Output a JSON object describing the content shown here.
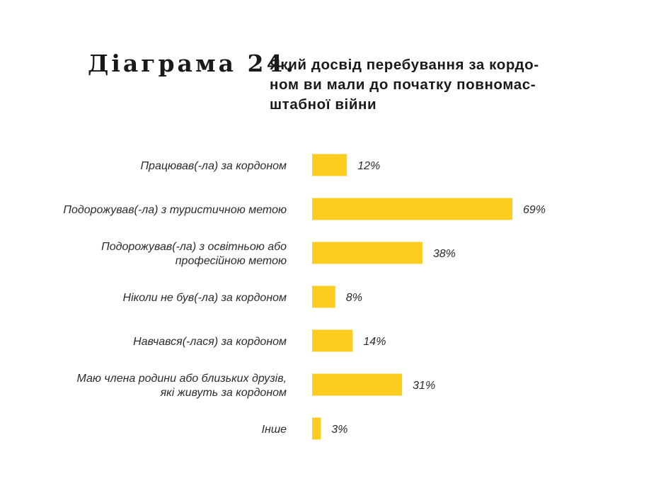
{
  "heading": {
    "number": "Діаграма 24.",
    "title_lines": [
      "Який досвід перебування за кордо-",
      "ном ви мали до початку повномас-",
      "штабної війни"
    ]
  },
  "colors": {
    "bar": "#FDCD20",
    "text": "#1a1a1a",
    "background": "#ffffff"
  },
  "chart_data": {
    "type": "bar",
    "orientation": "horizontal",
    "title": "Який досвід перебування за кордоном ви мали до початку повномасштабної війни",
    "categories": [
      [
        "Працював(-ла) за кордоном"
      ],
      [
        "Подорожував(-ла) з туристичною метою"
      ],
      [
        "Подорожував(-ла) з освітньою або",
        "професійною метою"
      ],
      [
        "Ніколи не був(-ла) за кордоном"
      ],
      [
        "Навчався(-лася) за кордоном"
      ],
      [
        "Маю члена родини або близьких друзів,",
        "які живуть за кордоном"
      ],
      [
        "Інше"
      ]
    ],
    "values": [
      12,
      69,
      38,
      8,
      14,
      31,
      3
    ],
    "value_labels": [
      "12%",
      "69%",
      "38%",
      "8%",
      "14%",
      "31%",
      "3%"
    ],
    "unit": "%",
    "xlim": [
      0,
      69
    ],
    "grid": false,
    "legend": "none"
  }
}
